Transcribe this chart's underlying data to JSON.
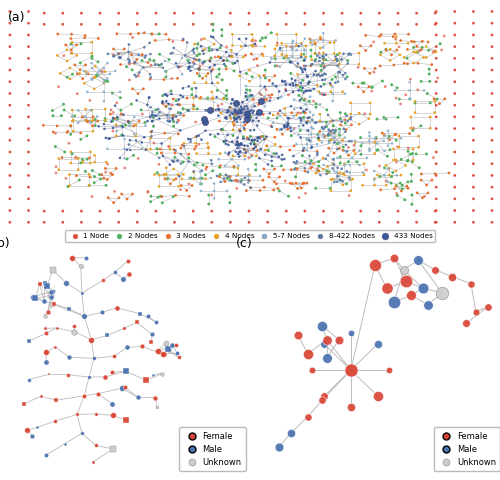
{
  "panel_a_label": "(a)",
  "panel_b_label": "(b)",
  "panel_c_label": "(c)",
  "legend_a": {
    "labels": [
      "1 Node",
      "2 Nodes",
      "3 Nodes",
      "4 Nodes",
      "5-7 Nodes",
      "8-422 Nodes",
      "433 Nodes"
    ],
    "colors": [
      "#e05040",
      "#50b060",
      "#e87030",
      "#e8a020",
      "#8ab0cc",
      "#5878a8",
      "#3a5898"
    ],
    "edge_colors": [
      "none",
      "none",
      "none",
      "none",
      "#8ab0cc",
      "#5878a8",
      "#3a5898"
    ]
  },
  "legend_b": {
    "labels": [
      "Female",
      "Male",
      "Unknown"
    ],
    "colors": [
      "#d94535",
      "#4a72b0",
      "#cccccc"
    ],
    "edge_colors": [
      "#d94535",
      "#4a72b0",
      "#999999"
    ]
  },
  "node_color_1node": "#e05040",
  "node_color_2node": "#50b060",
  "node_color_3node": "#e87030",
  "node_color_4node": "#e8a020",
  "node_color_5_7": "#8ab0cc",
  "node_color_8_422": "#5878a8",
  "node_color_433": "#3a5898",
  "edge_color_network": "#999999",
  "background": "#ffffff",
  "fig_width": 5.0,
  "fig_height": 4.8
}
